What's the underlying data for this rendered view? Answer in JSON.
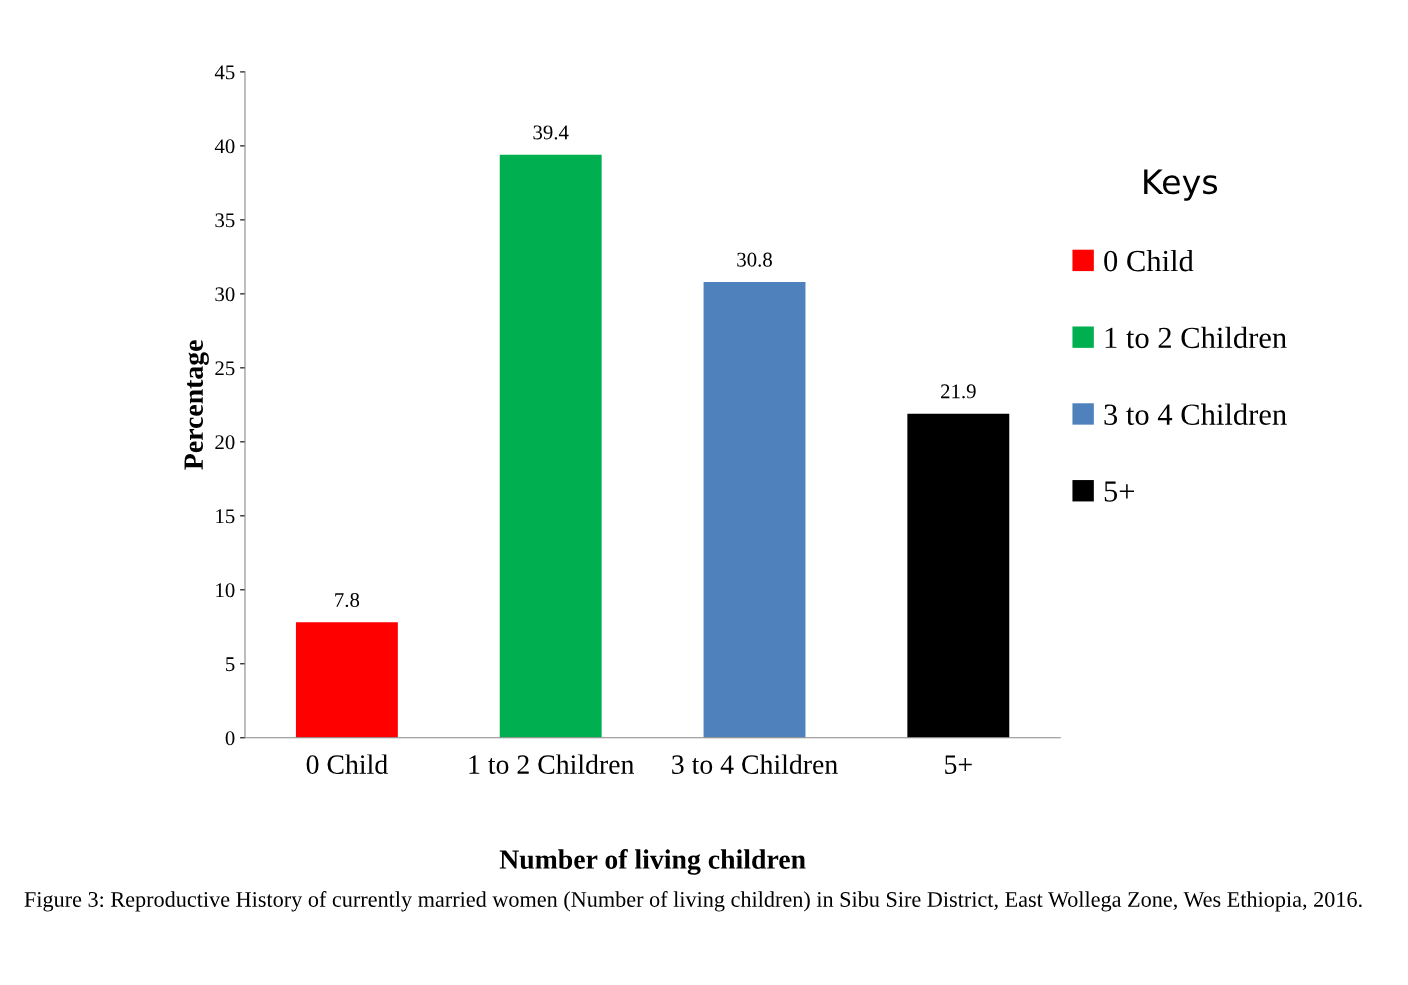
{
  "chart_data": {
    "type": "bar",
    "xlabel": "Number of living children",
    "ylabel": "Percentage",
    "categories": [
      "0 Child",
      "1 to 2 Children",
      "3 to 4 Children",
      "5+"
    ],
    "series": [
      {
        "name": "0 Child",
        "color": "#ff0000",
        "values": [
          7.8,
          null,
          null,
          null
        ]
      },
      {
        "name": "1 to 2 Children",
        "color": "#00b050",
        "values": [
          null,
          39.4,
          null,
          null
        ]
      },
      {
        "name": "3 to 4 Children",
        "color": "#4f81bd",
        "values": [
          null,
          null,
          30.8,
          null
        ]
      },
      {
        "name": "5+",
        "color": "#000000",
        "values": [
          null,
          null,
          null,
          21.9
        ]
      }
    ],
    "ylim": [
      0,
      45
    ],
    "yticks": [
      0,
      5,
      10,
      15,
      20,
      25,
      30,
      35,
      40,
      45
    ],
    "data_labels": true,
    "grid": false,
    "legend": "right",
    "legend_title": "Keys",
    "annotations": [
      "Figure 3: Reproductive History of currently married women (Number of living children) in Sibu Sire District, East Wollega Zone, Wes Ethiopia, 2016."
    ]
  }
}
